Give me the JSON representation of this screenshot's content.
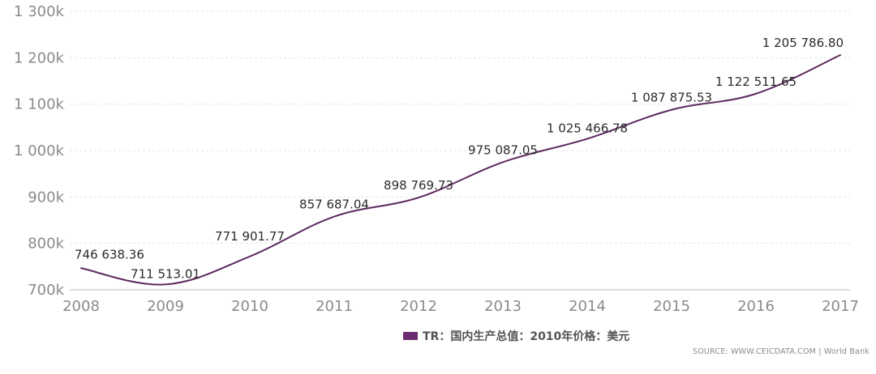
{
  "chart_data": {
    "type": "line",
    "title": "",
    "xlabel": "",
    "ylabel": "",
    "x": [
      "2008",
      "2009",
      "2010",
      "2011",
      "2012",
      "2013",
      "2014",
      "2015",
      "2016",
      "2017"
    ],
    "series": [
      {
        "name": "TR：国内生产总值：2010年价格：美元",
        "values": [
          746638.36,
          711513.01,
          771901.77,
          857687.04,
          898769.73,
          975087.05,
          1025466.78,
          1087875.53,
          1122511.65,
          1205786.8
        ],
        "data_labels": [
          "746 638.36",
          "711 513.01",
          "771 901.77",
          "857 687.04",
          "898 769.73",
          "975 087.05",
          "1 025 466.78",
          "1 087 875.53",
          "1 122 511.65",
          "1 205 786.80"
        ]
      }
    ],
    "ylim": [
      700000,
      1300000
    ],
    "y_ticks": [
      700000,
      800000,
      900000,
      1000000,
      1100000,
      1200000,
      1300000
    ],
    "y_tick_labels": [
      "700k",
      "800k",
      "900k",
      "1 000k",
      "1 100k",
      "1 200k",
      "1 300k"
    ],
    "grid": true,
    "legend_position": "bottom-center"
  },
  "legend": {
    "label": "TR：国内生产总值：2010年价格：美元"
  },
  "source": {
    "text": "SOURCE: WWW.CEICDATA.COM | World Bank"
  },
  "colors": {
    "series_line": "#5c2a5e",
    "legend_swatch": "#6a2c6e"
  }
}
